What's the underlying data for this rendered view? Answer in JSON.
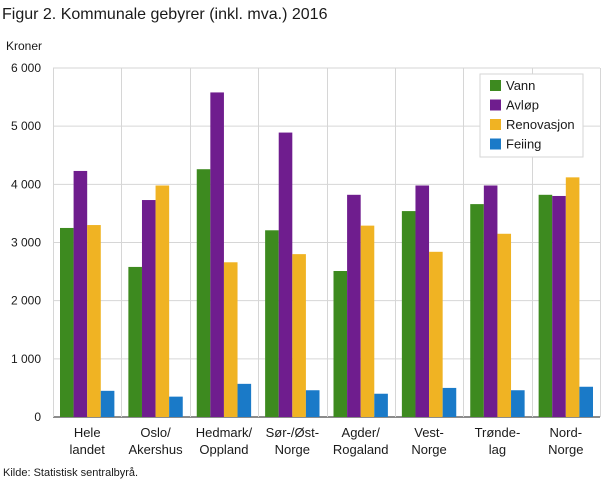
{
  "figure": {
    "title": "Figur 2. Kommunale gebyrer (inkl. mva.) 2016",
    "source": "Kilde: Statistisk sentralbyrå."
  },
  "chart_data": {
    "type": "bar",
    "title": "Figur 2. Kommunale gebyrer (inkl. mva.) 2016",
    "ylabel": "Kroner",
    "xlabel": "",
    "ylim": [
      0,
      6000
    ],
    "yticks": [
      0,
      1000,
      2000,
      3000,
      4000,
      5000,
      6000
    ],
    "ytick_labels": [
      "0",
      "1 000",
      "2 000",
      "3 000",
      "4 000",
      "5 000",
      "6 000"
    ],
    "grid": true,
    "legend_position": "top-right",
    "categories": [
      [
        "Hele",
        "landet"
      ],
      [
        "Oslo/",
        "Akershus"
      ],
      [
        "Hedmark/",
        "Oppland"
      ],
      [
        "Sør-/Øst-",
        "Norge"
      ],
      [
        "Agder/",
        "Rogaland"
      ],
      [
        "Vest-",
        "Norge"
      ],
      [
        "Trønde-",
        "lag"
      ],
      [
        "Nord-",
        "Norge"
      ]
    ],
    "series": [
      {
        "name": "Vann",
        "color": "#3d8a1f",
        "values": [
          3250,
          2580,
          4260,
          3210,
          2510,
          3540,
          3660,
          3820
        ]
      },
      {
        "name": "Avløp",
        "color": "#6f1d8e",
        "values": [
          4230,
          3730,
          5580,
          4890,
          3820,
          3980,
          3980,
          3800
        ]
      },
      {
        "name": "Renovasjon",
        "color": "#f0b323",
        "values": [
          3300,
          3980,
          2660,
          2800,
          3290,
          2840,
          3150,
          4120
        ]
      },
      {
        "name": "Feiing",
        "color": "#1a7ac8",
        "values": [
          450,
          350,
          570,
          460,
          400,
          500,
          460,
          520
        ]
      }
    ]
  }
}
